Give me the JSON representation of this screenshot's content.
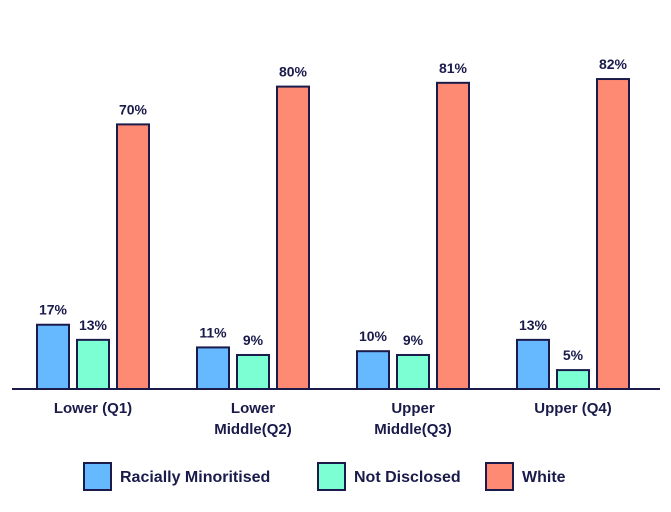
{
  "chart_data": {
    "type": "bar",
    "categories": [
      [
        "Lower (Q1)"
      ],
      [
        "Lower",
        "Middle(Q2)"
      ],
      [
        "Upper",
        "Middle(Q3)"
      ],
      [
        "Upper (Q4)"
      ]
    ],
    "series": [
      {
        "name": "Racially Minoritised",
        "color": "#66b8ff",
        "values": [
          17,
          11,
          10,
          13
        ]
      },
      {
        "name": "Not Disclosed",
        "color": "#7dffd4",
        "values": [
          13,
          9,
          9,
          5
        ]
      },
      {
        "name": "White",
        "color": "#ff8a73",
        "values": [
          70,
          80,
          81,
          82
        ]
      }
    ],
    "value_suffix": "%",
    "ylim": [
      0,
      100
    ],
    "grid": false,
    "legend_position": "bottom",
    "title": "",
    "xlabel": "",
    "ylabel": ""
  }
}
